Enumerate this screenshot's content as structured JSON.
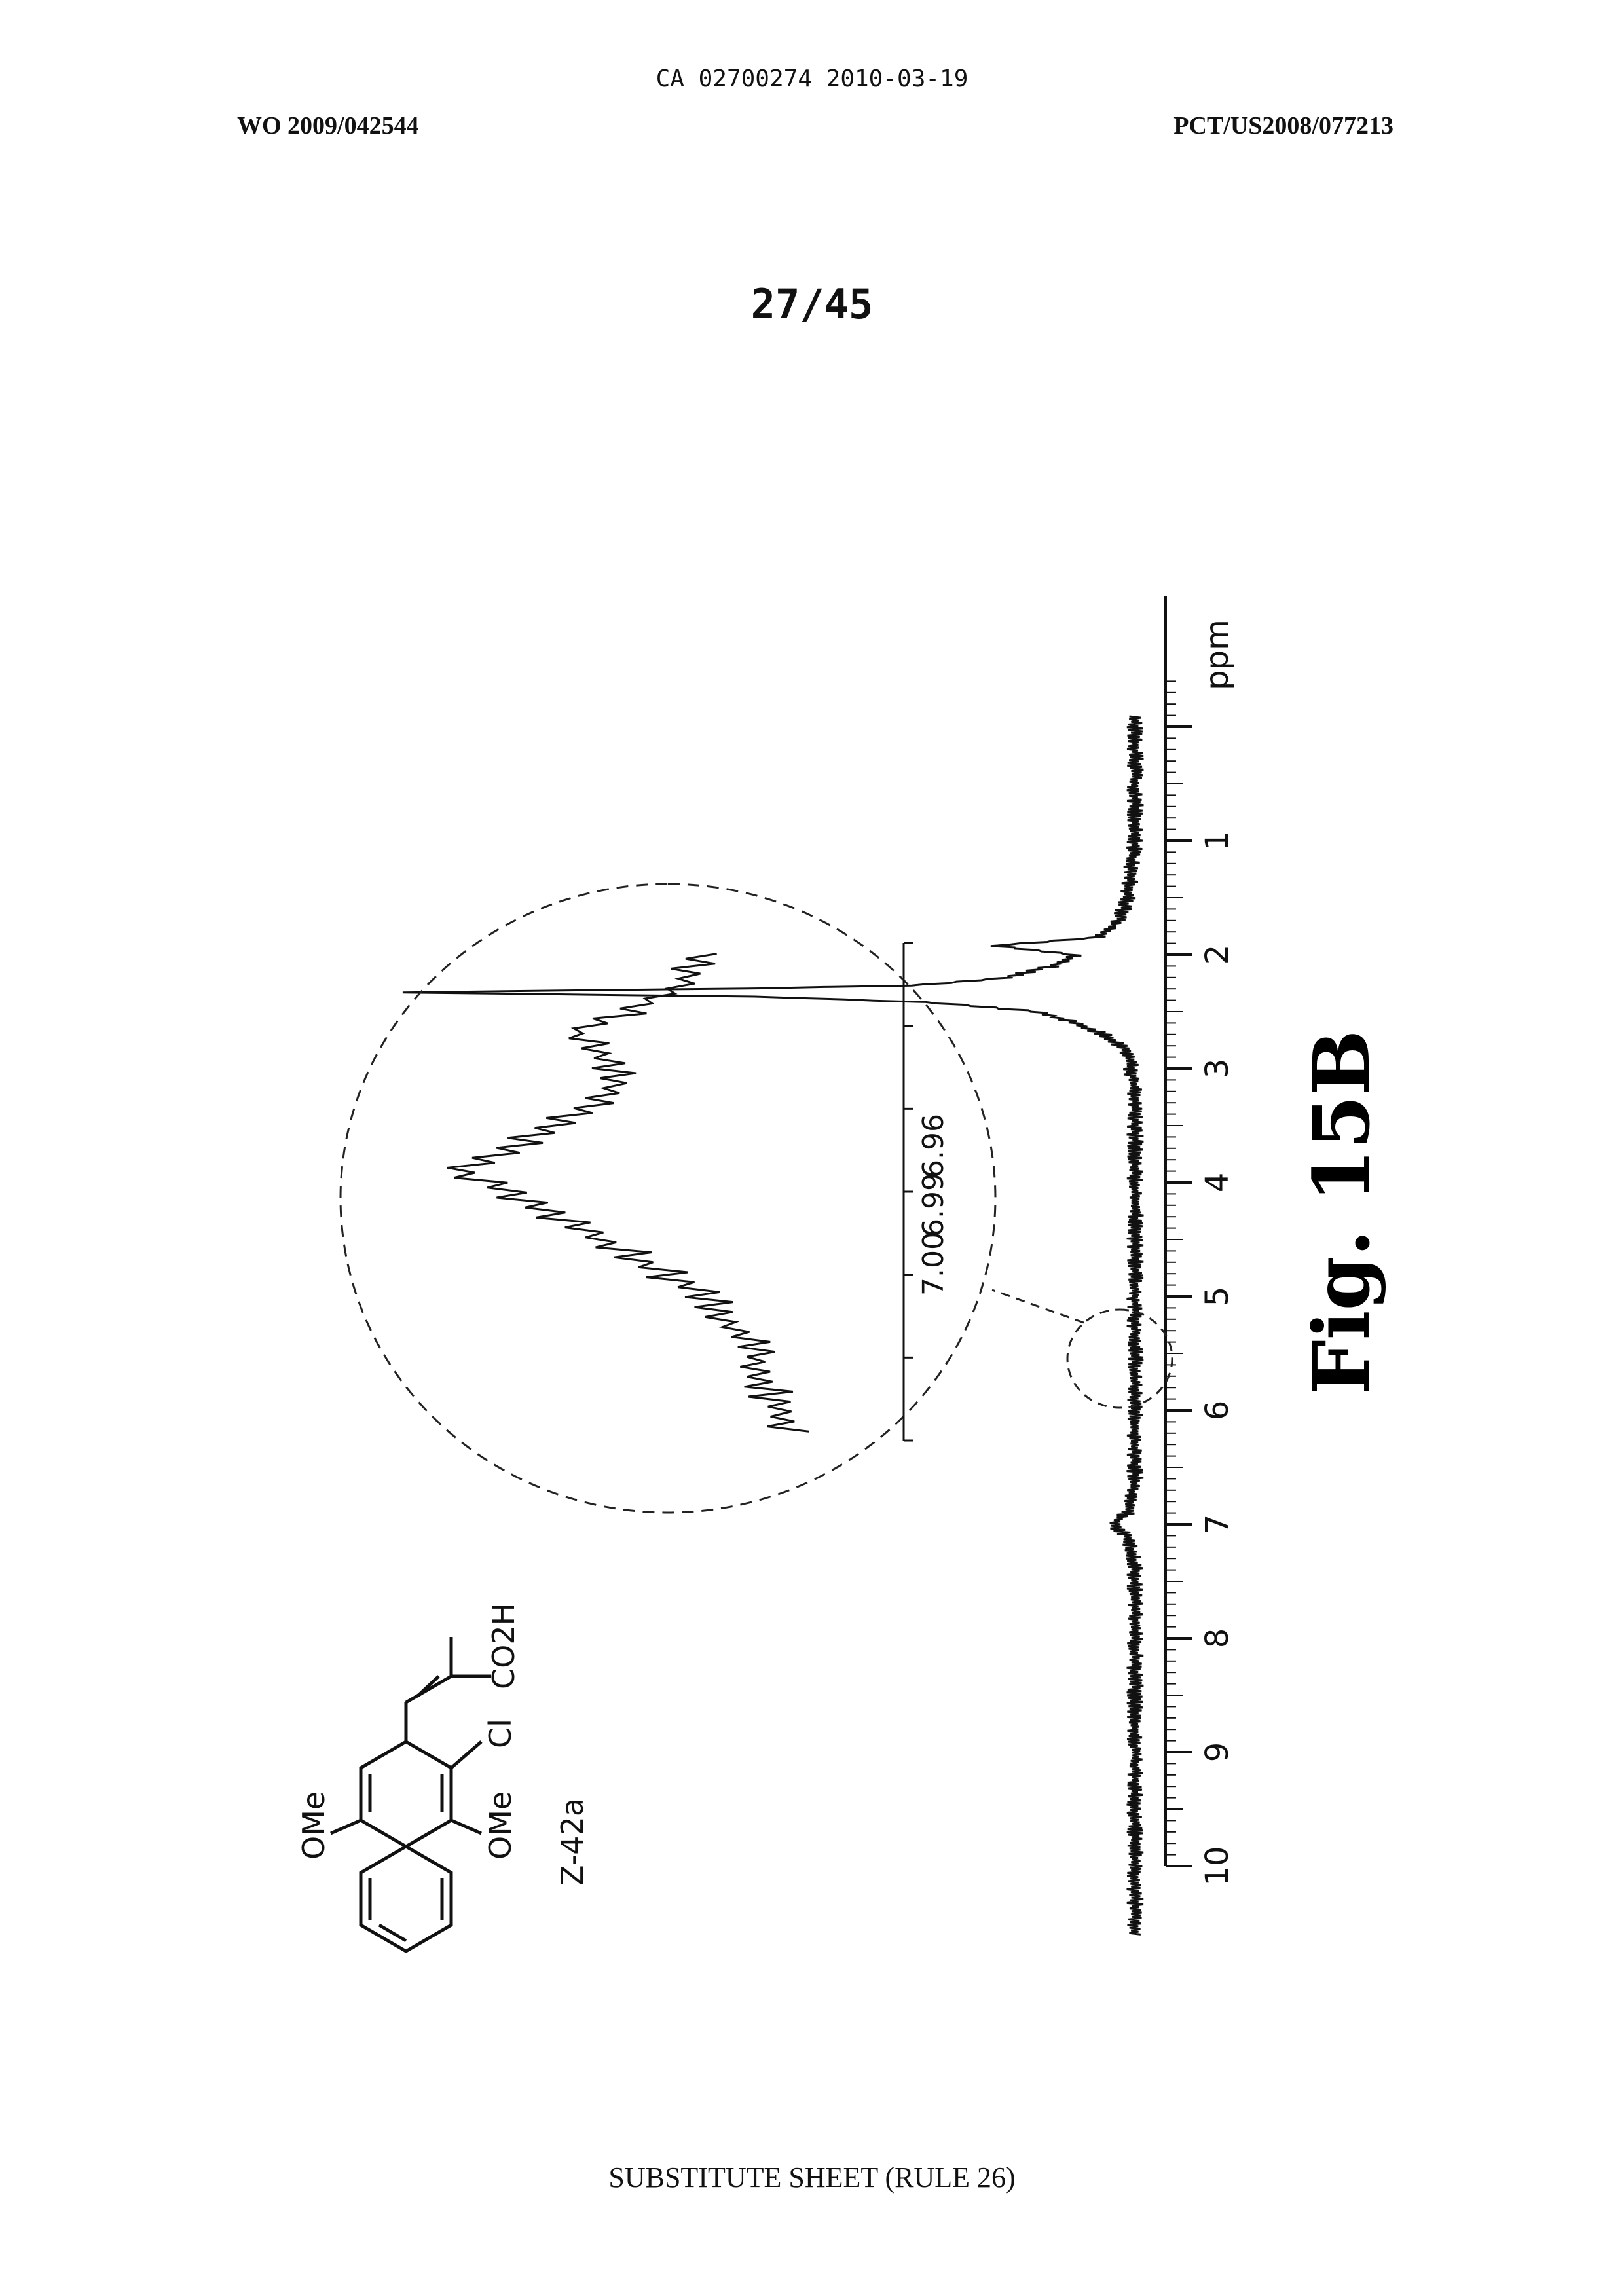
{
  "header": {
    "ca_number": "CA 02700274 2010-03-19",
    "wo_number": "WO 2009/042544",
    "pct_number": "PCT/US2008/077213",
    "sheet": "27/45"
  },
  "footer": "SUBSTITUTE SHEET (RULE 26)",
  "figure": {
    "caption": "Fig. 15B",
    "compound_label": "Z-42a",
    "structure_labels": {
      "ome_top": "OMe",
      "ome_bottom": "OMe",
      "chlorine": "Cl",
      "acid": "CO2H"
    }
  },
  "chart_data": {
    "type": "line",
    "title": "",
    "xlabel": "ppm",
    "ylabel": "",
    "xlim": [
      11.5,
      -0.3
    ],
    "x_reversed": true,
    "grid": false,
    "ticks": [
      "10",
      "9",
      "8",
      "7",
      "6",
      "5",
      "4",
      "3",
      "2",
      "1",
      "ppm"
    ],
    "series": [
      {
        "x": [
          10.6,
          9.0,
          8.0,
          7.4,
          7.1,
          7.0,
          6.9,
          6.6,
          6.0,
          5.0,
          4.0,
          3.2,
          2.85,
          2.7,
          2.6,
          2.5,
          2.42,
          2.37,
          2.33,
          2.3,
          2.27,
          2.2,
          2.1,
          2.0,
          1.92,
          1.85,
          1.7,
          1.5,
          1.0,
          0.0,
          -0.1
        ],
        "y": [
          0.01,
          0.01,
          0.01,
          0.01,
          0.02,
          0.04,
          0.02,
          0.01,
          0.01,
          0.01,
          0.01,
          0.01,
          0.02,
          0.05,
          0.09,
          0.14,
          0.28,
          0.5,
          1.0,
          0.55,
          0.3,
          0.18,
          0.12,
          0.09,
          0.2,
          0.06,
          0.03,
          0.02,
          0.01,
          0.01,
          0.01
        ]
      }
    ],
    "inset": {
      "ticks": [
        "7.00",
        "6.99",
        "6.96"
      ],
      "x": [
        7.01,
        7.005,
        7.0,
        6.995,
        6.99,
        6.985,
        6.98,
        6.975,
        6.97,
        6.965,
        6.96,
        6.955
      ],
      "y": [
        0.1,
        0.15,
        0.2,
        0.3,
        0.5,
        0.75,
        1.0,
        0.72,
        0.55,
        0.68,
        0.4,
        0.3
      ]
    }
  }
}
